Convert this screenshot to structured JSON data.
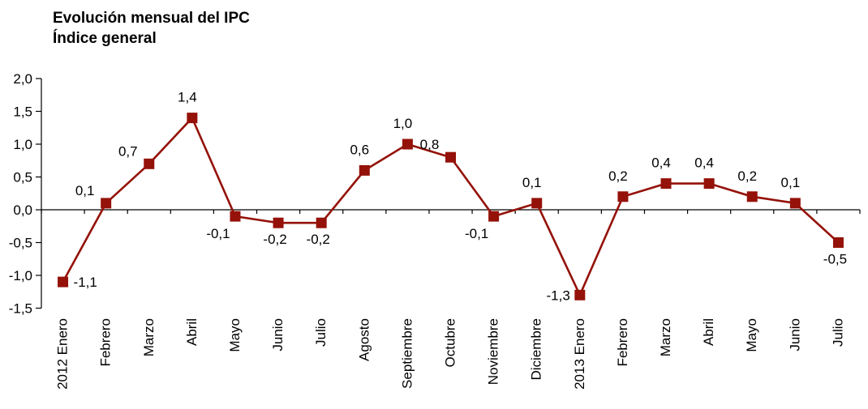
{
  "chart_data": {
    "type": "line",
    "title": "Evolución mensual del IPC",
    "subtitle": "Índice general",
    "categories": [
      "2012 Enero",
      "Febrero",
      "Marzo",
      "Abril",
      "Mayo",
      "Junio",
      "Julio",
      "Agosto",
      "Septiembre",
      "Octubre",
      "Noviembre",
      "Diciembre",
      "2013 Enero",
      "Febrero",
      "Marzo",
      "Abril",
      "Mayo",
      "Junio",
      "Julio"
    ],
    "values": [
      -1.1,
      0.1,
      0.7,
      1.4,
      -0.1,
      -0.2,
      -0.2,
      0.6,
      1.0,
      0.8,
      -0.1,
      0.1,
      -1.3,
      0.2,
      0.4,
      0.4,
      0.2,
      0.1,
      -0.5
    ],
    "point_labels": [
      "-1,1",
      "0,1",
      "0,7",
      "1,4",
      "-0,1",
      "-0,2",
      "-0,2",
      "0,6",
      "1,0",
      "0,8",
      "-0,1",
      "0,1",
      "-1,3",
      "0,2",
      "0,4",
      "0,4",
      "0,2",
      "0,1",
      "-0,5"
    ],
    "point_label_pos": [
      "right",
      "above-left",
      "above-left",
      "above",
      "below-left",
      "below",
      "below",
      "above",
      "above",
      "above-left",
      "below-left",
      "above",
      "left",
      "above",
      "above",
      "above",
      "above",
      "above",
      "below"
    ],
    "ytick_labels": [
      "2,0",
      "1,5",
      "1,0",
      "0,5",
      "0,0",
      "-0,5",
      "-1,0",
      "-1,5"
    ],
    "ytick_step": 0.5,
    "ylim": [
      -1.5,
      2.0
    ],
    "xlabel": "",
    "ylabel": "",
    "grid": false,
    "legend": "none",
    "decimal_separator": ",",
    "line_color": "#941209",
    "marker": "square",
    "axis_color": "#000000",
    "background": "#ffffff"
  }
}
